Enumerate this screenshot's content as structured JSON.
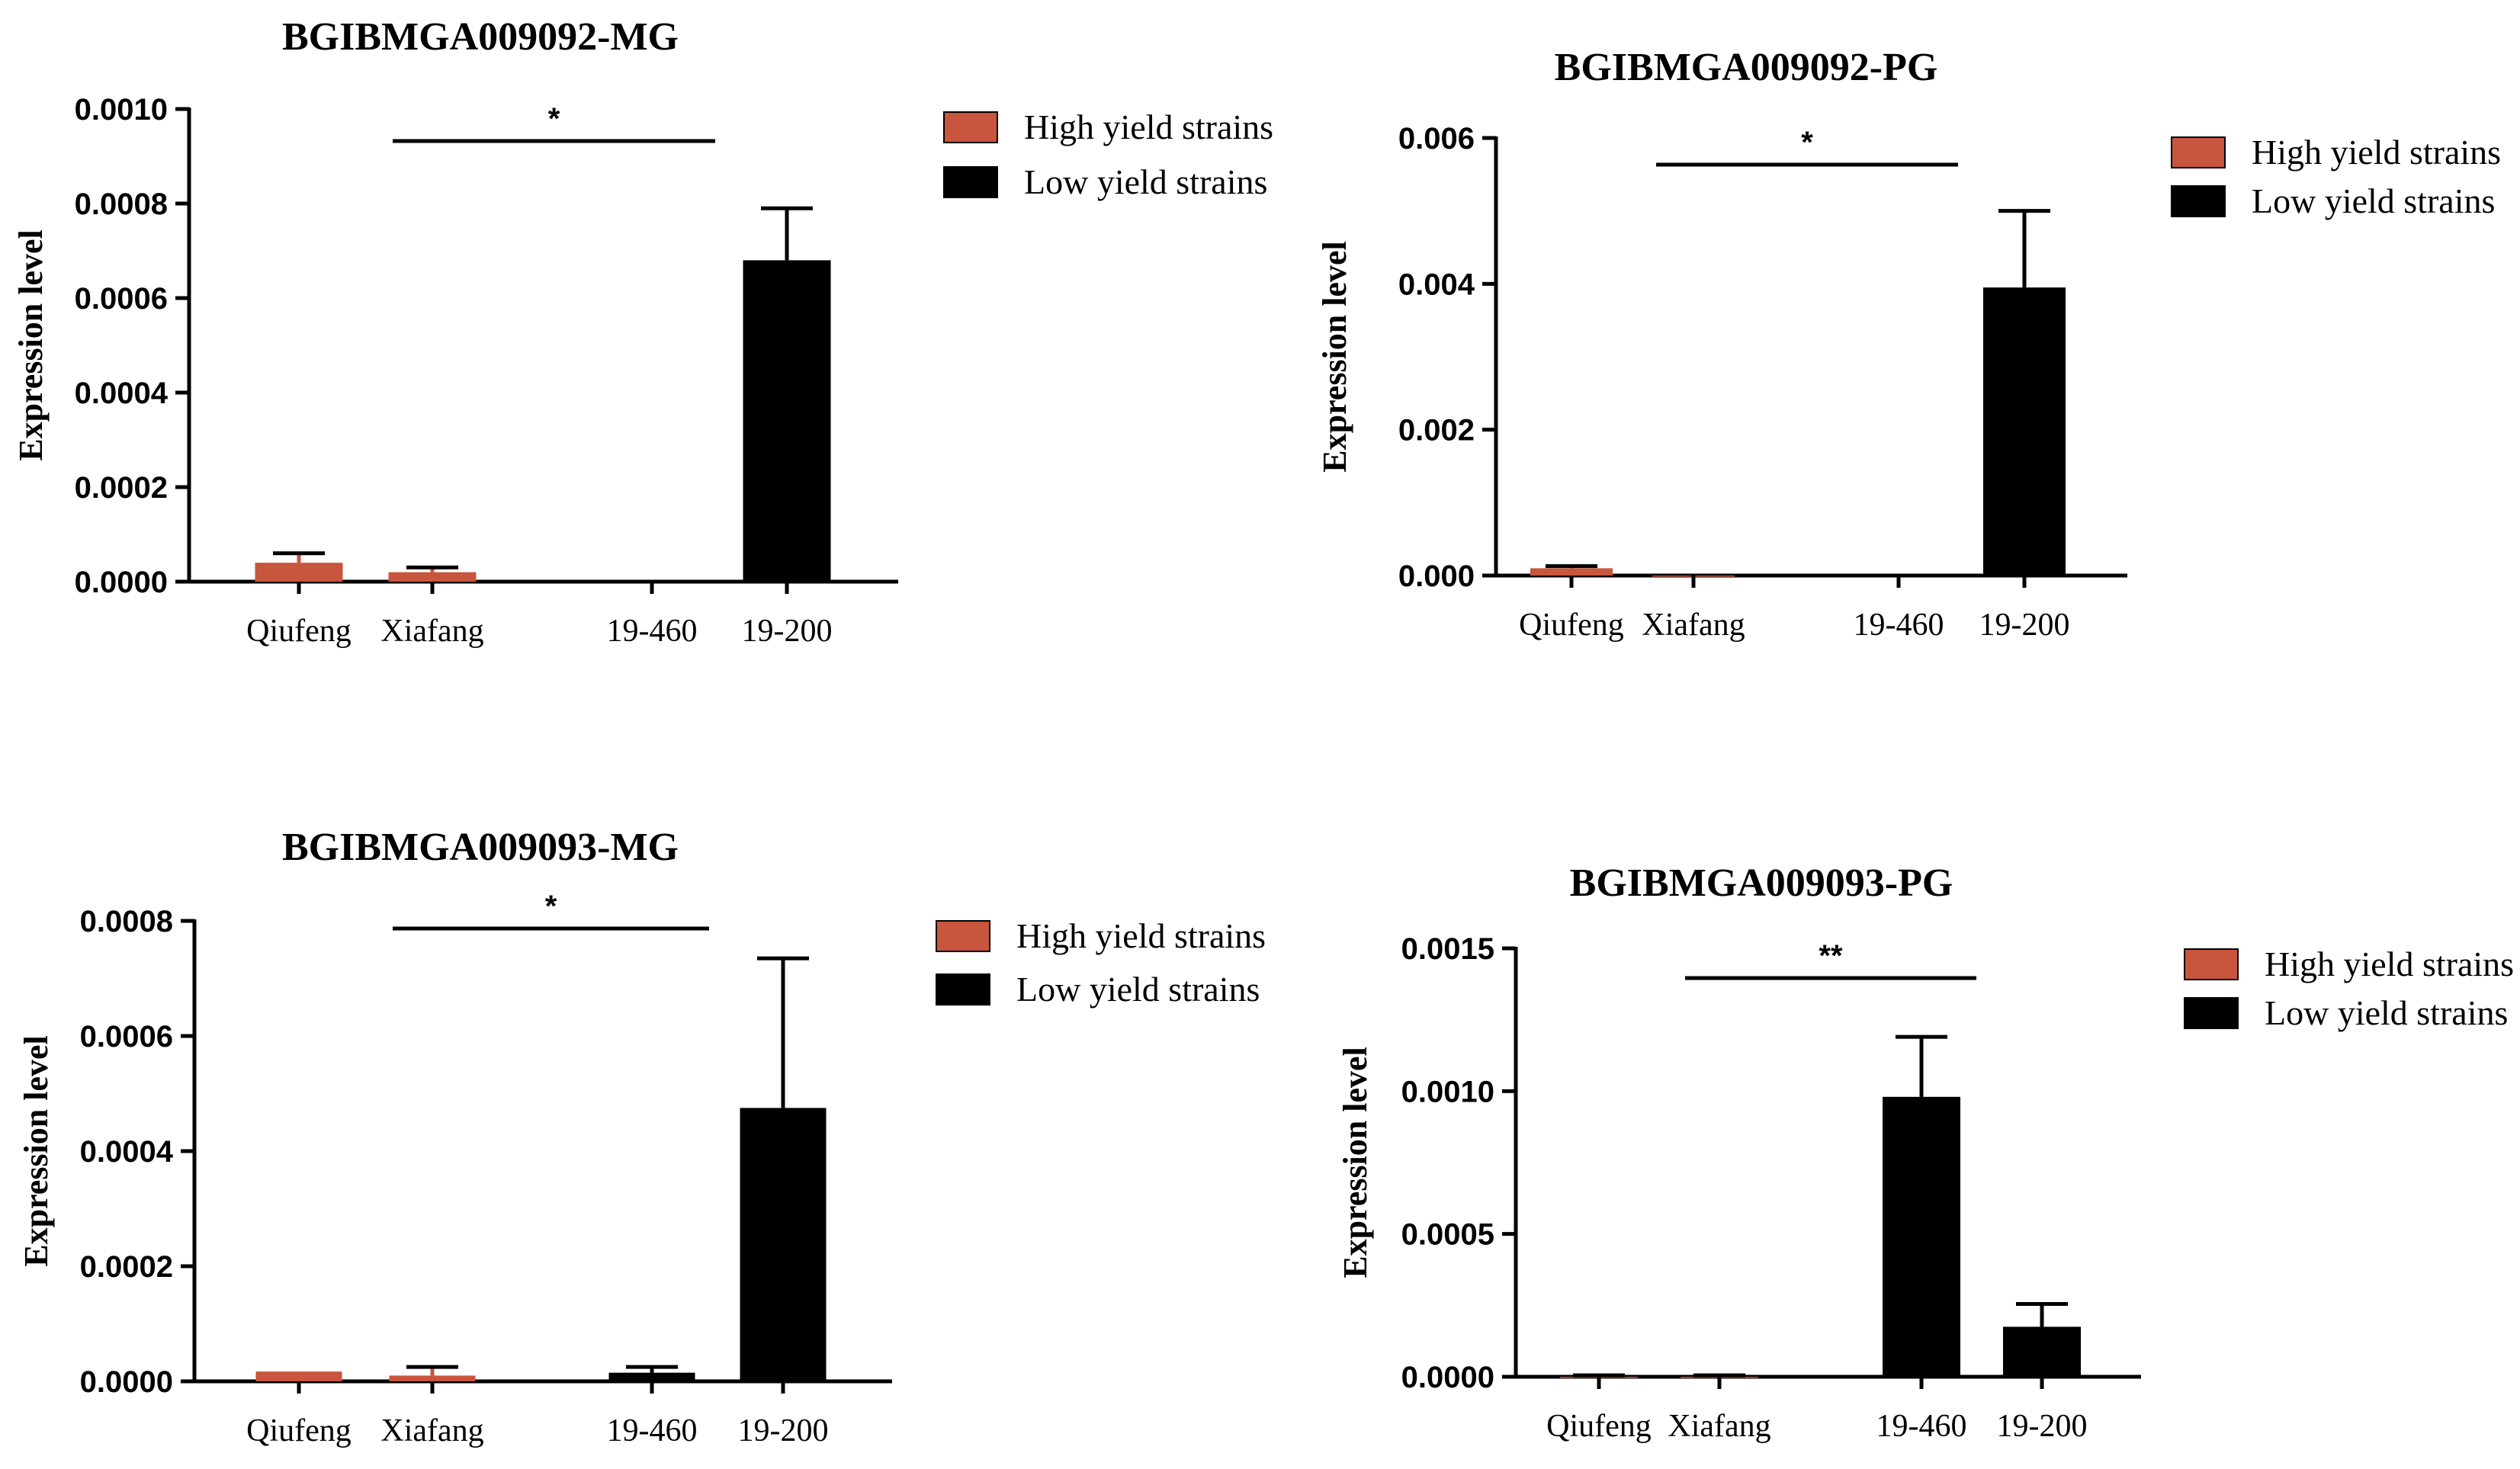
{
  "chart_data": [
    {
      "type": "bar",
      "title": "BGIBMGA009092-MG",
      "ylabel": "Expression level",
      "xlabel": "",
      "categories": [
        "Qiufeng",
        "Xiafang",
        "19-460",
        "19-200"
      ],
      "groups": [
        "High yield strains",
        "High yield strains",
        "Low yield strains",
        "Low yield strains"
      ],
      "values": [
        4e-05,
        2e-05,
        0.0,
        0.00068
      ],
      "errors": [
        2e-05,
        1e-05,
        0.0,
        0.00011
      ],
      "ylim": [
        0,
        0.001
      ],
      "yticks": [
        0,
        0.0002,
        0.0004,
        0.0006,
        0.0008,
        0.001
      ],
      "ytick_labels": [
        "0.0000",
        "0.0002",
        "0.0004",
        "0.0006",
        "0.0008",
        "0.0010"
      ],
      "significance": "*",
      "legend": [
        "High yield strains",
        "Low yield strains"
      ]
    },
    {
      "type": "bar",
      "title": "BGIBMGA009092-PG",
      "ylabel": "Expression level",
      "xlabel": "",
      "categories": [
        "Qiufeng",
        "Xiafang",
        "19-460",
        "19-200"
      ],
      "groups": [
        "High yield strains",
        "High yield strains",
        "Low yield strains",
        "Low yield strains"
      ],
      "values": [
        0.0001,
        0.0,
        0.0,
        0.00395
      ],
      "errors": [
        3e-05,
        0.0,
        0.0,
        0.00105
      ],
      "ylim": [
        0,
        0.006
      ],
      "yticks": [
        0,
        0.002,
        0.004,
        0.006
      ],
      "ytick_labels": [
        "0.000",
        "0.002",
        "0.004",
        "0.006"
      ],
      "significance": "*",
      "legend": [
        "High yield strains",
        "Low yield strains"
      ]
    },
    {
      "type": "bar",
      "title": "BGIBMGA009093-MG",
      "ylabel": "Expression level",
      "xlabel": "",
      "categories": [
        "Qiufeng",
        "Xiafang",
        "19-460",
        "19-200"
      ],
      "groups": [
        "High yield strains",
        "High yield strains",
        "Low yield strains",
        "Low yield strains"
      ],
      "values": [
        1.7e-05,
        1e-05,
        1.5e-05,
        0.000475
      ],
      "errors": [
        0.0,
        1.5e-05,
        1e-05,
        0.00026
      ],
      "ylim": [
        0,
        0.0008
      ],
      "yticks": [
        0,
        0.0002,
        0.0004,
        0.0006,
        0.0008
      ],
      "ytick_labels": [
        "0.0000",
        "0.0002",
        "0.0004",
        "0.0006",
        "0.0008"
      ],
      "significance": "*",
      "legend": [
        "High yield strains",
        "Low yield strains"
      ]
    },
    {
      "type": "bar",
      "title": "BGIBMGA009093-PG",
      "ylabel": "Expression level",
      "xlabel": "",
      "categories": [
        "Qiufeng",
        "Xiafang",
        "19-460",
        "19-200"
      ],
      "groups": [
        "High yield strains",
        "High yield strains",
        "Low yield strains",
        "Low yield strains"
      ],
      "values": [
        0.0,
        0.0,
        0.00098,
        0.000175
      ],
      "errors": [
        5e-06,
        5e-06,
        0.00021,
        8e-05
      ],
      "ylim": [
        0,
        0.0015
      ],
      "yticks": [
        0,
        0.0005,
        0.001,
        0.0015
      ],
      "ytick_labels": [
        "0.0000",
        "0.0005",
        "0.0010",
        "0.0015"
      ],
      "significance": "**",
      "legend": [
        "High yield strains",
        "Low yield strains"
      ]
    }
  ],
  "colors": {
    "high_yield": "#c8553d",
    "low_yield": "#000000",
    "axis": "#000000"
  }
}
